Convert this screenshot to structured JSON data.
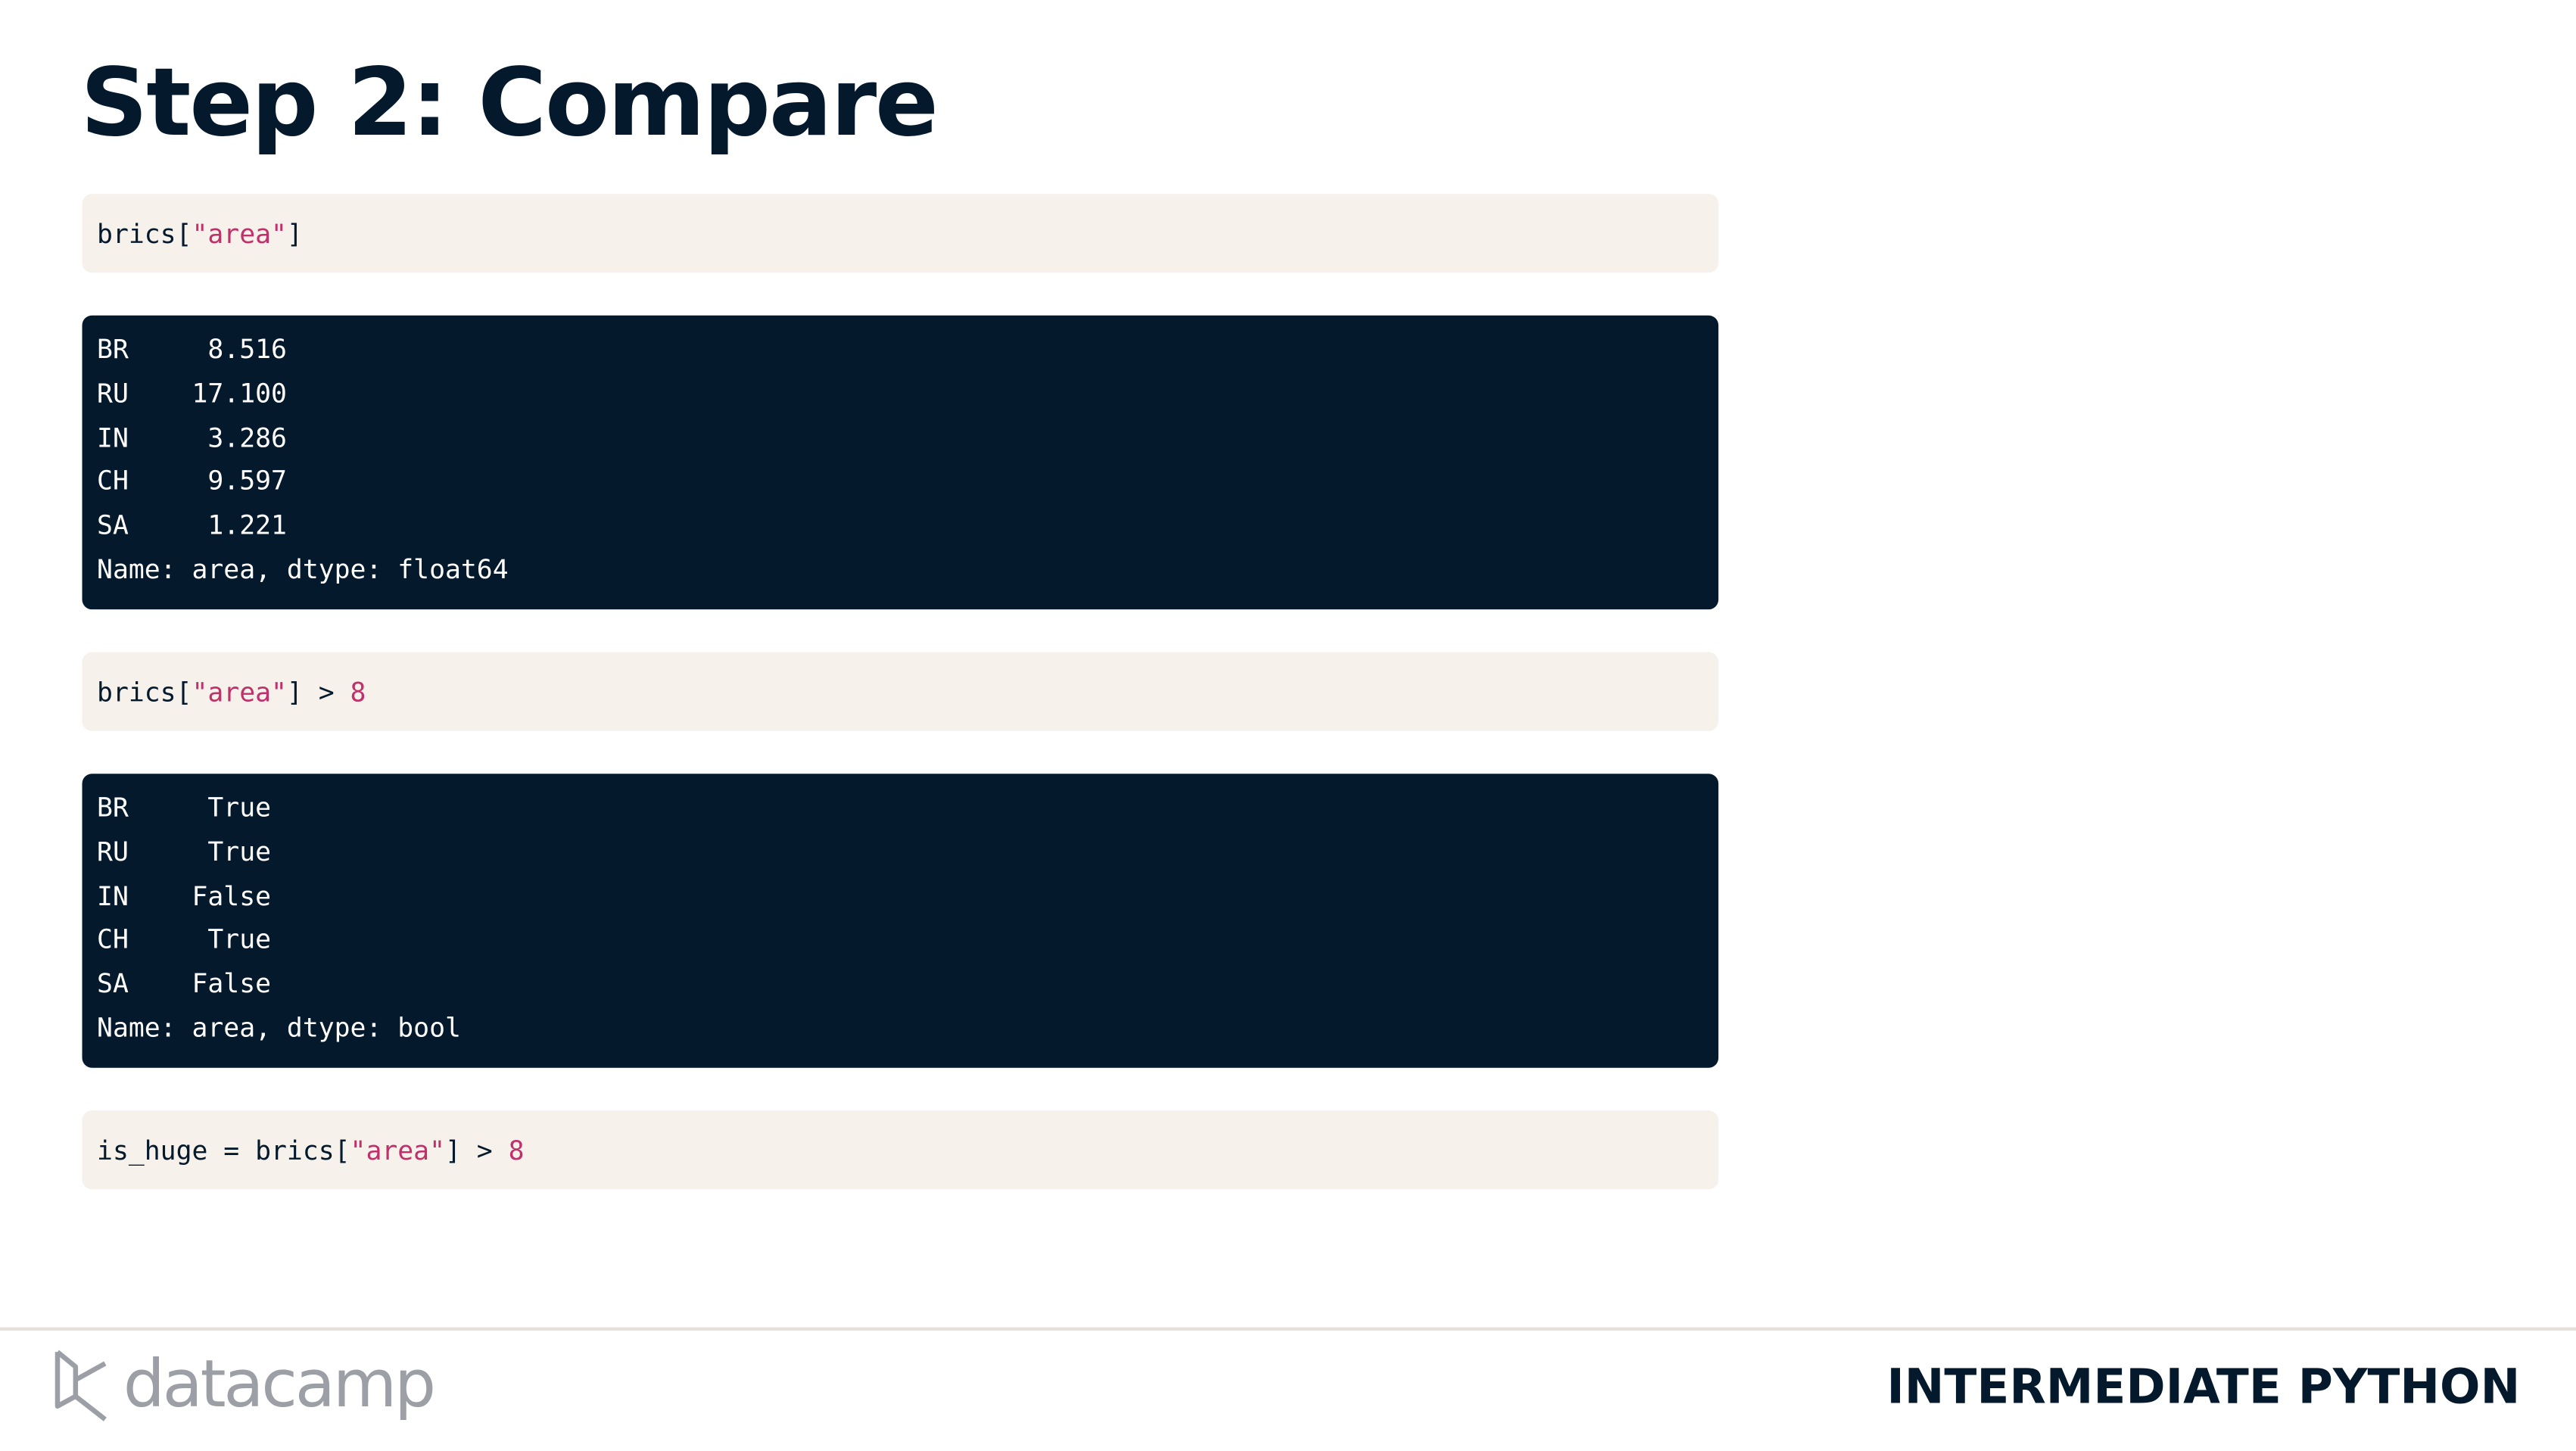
{
  "header": {
    "title": "Step 2: Compare"
  },
  "blocks": [
    {
      "kind": "code",
      "tokens": [
        {
          "text": "brics[",
          "kind": "plain"
        },
        {
          "text": "\"area\"",
          "kind": "string"
        },
        {
          "text": "]",
          "kind": "plain"
        }
      ]
    },
    {
      "kind": "output",
      "lines": [
        "BR     8.516",
        "RU    17.100",
        "IN     3.286",
        "CH     9.597",
        "SA     1.221",
        "Name: area, dtype: float64"
      ]
    },
    {
      "kind": "code",
      "tokens": [
        {
          "text": "brics[",
          "kind": "plain"
        },
        {
          "text": "\"area\"",
          "kind": "string"
        },
        {
          "text": "] > ",
          "kind": "plain"
        },
        {
          "text": "8",
          "kind": "number"
        }
      ]
    },
    {
      "kind": "output",
      "lines": [
        "BR     True",
        "RU     True",
        "IN    False",
        "CH     True",
        "SA    False",
        "Name: area, dtype: bool"
      ]
    },
    {
      "kind": "code",
      "tokens": [
        {
          "text": "is_huge = brics[",
          "kind": "plain"
        },
        {
          "text": "\"area\"",
          "kind": "string"
        },
        {
          "text": "] > ",
          "kind": "plain"
        },
        {
          "text": "8",
          "kind": "number"
        }
      ]
    }
  ],
  "footer": {
    "logo_text": "datacamp",
    "course": "INTERMEDIATE PYTHON"
  }
}
